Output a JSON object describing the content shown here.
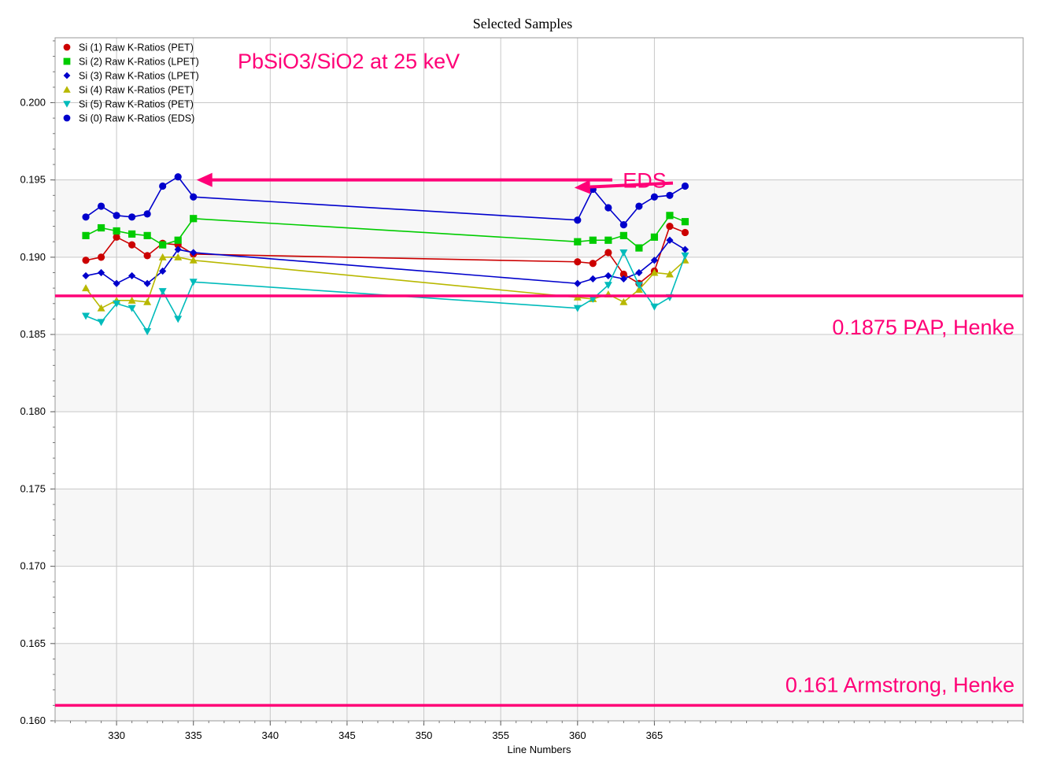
{
  "chart_data": {
    "type": "line",
    "title": "Selected Samples",
    "xlabel": "Line Numbers",
    "ylabel": "",
    "xlim": [
      326,
      389
    ],
    "ylim": [
      0.16,
      0.2042
    ],
    "xticks": [
      "330",
      "335",
      "340",
      "345",
      "350",
      "355",
      "360",
      "365"
    ],
    "yticks": [
      "0.160",
      "0.165",
      "0.170",
      "0.175",
      "0.180",
      "0.185",
      "0.190",
      "0.195",
      "0.200"
    ],
    "grid": true,
    "legend_position": "top-left",
    "x": [
      328,
      329,
      330,
      331,
      332,
      333,
      334,
      335,
      360,
      361,
      362,
      363,
      364,
      365,
      366,
      367
    ],
    "series": [
      {
        "name": "Si (1) Raw K-Ratios (PET)",
        "color": "#cc0000",
        "marker": "circle",
        "values": [
          0.1898,
          0.19,
          0.1913,
          0.1908,
          0.1901,
          0.1909,
          0.1908,
          0.1902,
          0.1897,
          0.1896,
          0.1903,
          0.1889,
          0.1883,
          0.1891,
          0.192,
          0.1916
        ]
      },
      {
        "name": "Si (2) Raw K-Ratios (LPET)",
        "color": "#00cc00",
        "marker": "square",
        "values": [
          0.1914,
          0.1919,
          0.1917,
          0.1915,
          0.1914,
          0.1908,
          0.1911,
          0.1925,
          0.191,
          0.1911,
          0.1911,
          0.1914,
          0.1906,
          0.1913,
          0.1927,
          0.1923
        ]
      },
      {
        "name": "Si (3) Raw K-Ratios (LPET)",
        "color": "#0000cc",
        "marker": "diamond",
        "values": [
          0.1888,
          0.189,
          0.1883,
          0.1888,
          0.1883,
          0.1891,
          0.1905,
          0.1903,
          0.1883,
          0.1886,
          0.1888,
          0.1886,
          0.189,
          0.1898,
          0.1911,
          0.1905
        ]
      },
      {
        "name": "Si (4) Raw K-Ratios (PET)",
        "color": "#b8b800",
        "marker": "triangle-up",
        "values": [
          0.188,
          0.1867,
          0.1872,
          0.1872,
          0.1871,
          0.19,
          0.19,
          0.1898,
          0.1874,
          0.1873,
          0.1876,
          0.1871,
          0.1879,
          0.189,
          0.1889,
          0.1898
        ]
      },
      {
        "name": "Si (5) Raw K-Ratios (PET)",
        "color": "#00bbbb",
        "marker": "triangle-down",
        "values": [
          0.1862,
          0.1858,
          0.187,
          0.1867,
          0.1852,
          0.1878,
          0.186,
          0.1884,
          0.1867,
          0.1873,
          0.1882,
          0.1903,
          0.1882,
          0.1868,
          0.1874,
          0.1901
        ]
      },
      {
        "name": "Si (0) Raw K-Ratios (EDS)",
        "color": "#0000cc",
        "marker": "circle",
        "values": [
          0.1926,
          0.1933,
          0.1927,
          0.1926,
          0.1928,
          0.1946,
          0.1952,
          0.1939,
          0.1924,
          0.1944,
          0.1932,
          0.1921,
          0.1933,
          0.1939,
          0.194,
          0.1946
        ]
      }
    ],
    "reference_lines": [
      {
        "y": 0.1875,
        "label": "0.1875 PAP, Henke",
        "color": "#ff0077"
      },
      {
        "y": 0.161,
        "label": "0.161 Armstrong, Henke",
        "color": "#ff0077"
      }
    ],
    "annotations": {
      "sample_label": "PbSiO3/SiO2 at 25 keV",
      "eds_label": "EDS",
      "eds_arrow_left_target": [
        335,
        0.195
      ],
      "eds_arrow_right_target": [
        360,
        0.1945
      ]
    }
  }
}
